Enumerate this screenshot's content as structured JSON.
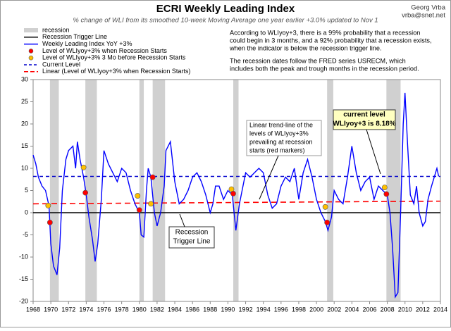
{
  "chart_data": {
    "type": "line",
    "title": "ECRI Weekly Leading Index",
    "subtitle": "% change of WLI from its smoothed 10-week Moving Average one year earlier +3.0% updated to Nov 1",
    "author": "Georg Vrba",
    "email": "vrba@snet.net",
    "notes": [
      "According to WLIyoy+3, there is a 99% probability that a recession",
      "could begin in 3 months, and a 92% probability that a recession exists,",
      "when the indicator is below the recession trigger line.",
      "The recession dates follow the FRED series USRECM, which",
      "includes both the peak and trough months in the recession period."
    ],
    "xlim": [
      1968,
      2014
    ],
    "xticks": [
      1968,
      1970,
      1972,
      1974,
      1976,
      1978,
      1980,
      1982,
      1984,
      1986,
      1988,
      1990,
      1992,
      1994,
      1996,
      1998,
      2000,
      2002,
      2004,
      2006,
      2008,
      2010,
      2012,
      2014
    ],
    "ylim": [
      -20,
      30
    ],
    "yticks": [
      -20,
      -15,
      -10,
      -5,
      0,
      5,
      10,
      15,
      20,
      25,
      30
    ],
    "grid": false,
    "legend": "top-left",
    "recessions": {
      "name": "recession",
      "color": "#d0d0d0",
      "spans": [
        [
          1969.9,
          1970.9
        ],
        [
          1973.9,
          1975.2
        ],
        [
          1980.0,
          1980.5
        ],
        [
          1981.5,
          1982.9
        ],
        [
          1990.6,
          1991.2
        ],
        [
          2001.2,
          2001.9
        ],
        [
          2007.9,
          2009.5
        ]
      ]
    },
    "trigger": {
      "name": "Recession Trigger Line",
      "color": "#000000",
      "value": 0
    },
    "series": [
      {
        "name": "Weekly Leading Index YoY +3%",
        "color": "#0000ff",
        "x": [
          1968,
          1968.3,
          1968.6,
          1969,
          1969.4,
          1969.8,
          1970,
          1970.3,
          1970.7,
          1971,
          1971.3,
          1971.7,
          1972,
          1972.5,
          1972.8,
          1973,
          1973.3,
          1973.7,
          1974,
          1974.3,
          1974.7,
          1975,
          1975.3,
          1975.7,
          1976,
          1976.5,
          1977,
          1977.5,
          1978,
          1978.5,
          1979,
          1979.5,
          1980,
          1980.2,
          1980.5,
          1980.8,
          1981,
          1981.3,
          1981.7,
          1982,
          1982.4,
          1982.8,
          1983,
          1983.5,
          1984,
          1984.5,
          1985,
          1985.5,
          1986,
          1986.5,
          1987,
          1987.5,
          1988,
          1988.3,
          1988.6,
          1989,
          1989.5,
          1990,
          1990.5,
          1990.9,
          1991.3,
          1991.7,
          1992,
          1992.5,
          1993,
          1993.5,
          1994,
          1994.5,
          1995,
          1995.5,
          1996,
          1996.5,
          1997,
          1997.5,
          1998,
          1998.5,
          1999,
          1999.5,
          2000,
          2000.5,
          2001,
          2001.3,
          2001.7,
          2002,
          2002.5,
          2003,
          2003.5,
          2004,
          2004.5,
          2005,
          2005.5,
          2006,
          2006.5,
          2007,
          2007.5,
          2008,
          2008.3,
          2008.6,
          2008.9,
          2009.2,
          2009.5,
          2009.8,
          2010,
          2010.3,
          2010.6,
          2011,
          2011.3,
          2011.6,
          2012,
          2012.3,
          2012.6,
          2013,
          2013.3,
          2013.6,
          2013.8
        ],
        "values": [
          13,
          11,
          8,
          6,
          5,
          1.5,
          -7,
          -12,
          -14,
          -8,
          5,
          12,
          14,
          15,
          10,
          16,
          12,
          8,
          4,
          -1,
          -6,
          -11,
          -7,
          3,
          14,
          11,
          9,
          7,
          10,
          9,
          5,
          2,
          0,
          -5,
          -5.5,
          5,
          10,
          8,
          0,
          -3,
          0,
          6,
          14,
          16,
          7,
          2,
          3,
          5,
          8,
          9,
          7,
          4,
          0,
          2,
          6,
          6,
          3,
          5,
          4,
          -4,
          2,
          6,
          9,
          8,
          9,
          10,
          9,
          4,
          1,
          2,
          6,
          8,
          7,
          10,
          3,
          9,
          12,
          8,
          3,
          0,
          -2,
          -4,
          -1,
          5,
          3,
          2,
          8,
          15,
          9,
          5,
          7,
          8,
          3,
          6,
          5,
          4,
          0,
          -8,
          -19,
          -18,
          0,
          20,
          27,
          15,
          4,
          2,
          6,
          0,
          -3,
          -2,
          3,
          6,
          8,
          10,
          8.18
        ]
      }
    ],
    "recession_start": {
      "name": "Level of WLIyoy+3% when Recession Starts",
      "color": "#ff0000",
      "x": [
        1969.9,
        1973.9,
        1980.0,
        1981.5,
        1990.6,
        2001.2,
        2007.9
      ],
      "values": [
        -2.2,
        4.5,
        0.6,
        8.0,
        4.3,
        -2.2,
        4.2
      ]
    },
    "before_start": {
      "name": "Level of WLIyoy+3% 3 Mo before Recession Starts",
      "color": "#ffc000",
      "x": [
        1969.7,
        1973.7,
        1979.8,
        1981.3,
        1990.4,
        2001.0,
        2007.7
      ],
      "values": [
        1.6,
        10.2,
        3.8,
        2.0,
        5.3,
        1.3,
        5.7
      ]
    },
    "current": {
      "name": "Current Level",
      "color": "#0000cc",
      "value": 8.18
    },
    "trend": {
      "name": "Linear (Level of WLIyoy+3% when Recession Starts)",
      "color": "#ff0000",
      "x": [
        1968,
        2014
      ],
      "values": [
        2.0,
        2.6
      ]
    },
    "annotations": {
      "trend_note": [
        "Linear trend-line of the",
        "levels of WLIyoy+3%",
        "prevailing at recession",
        "starts (red markers)"
      ],
      "current_note": [
        "current level",
        "WLIyoy+3 is 8.18%"
      ],
      "trigger_note": [
        "Recession",
        "Trigger Line"
      ]
    }
  }
}
